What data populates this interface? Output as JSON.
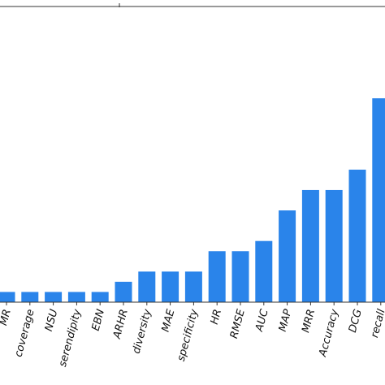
{
  "chart_data": {
    "type": "bar",
    "categories": [
      "MR",
      "coverage",
      "NSU",
      "serendipity",
      "EBN",
      "ARHR",
      "diversity",
      "MAE",
      "specificity",
      "HR",
      "RMSE",
      "AUC",
      "MAP",
      "MRR",
      "Accuracy",
      "DCG",
      "recall"
    ],
    "values": [
      1,
      1,
      1,
      1,
      1,
      2,
      3,
      3,
      3,
      5,
      5,
      6,
      9,
      11,
      11,
      13,
      20
    ],
    "ylim": [
      0,
      29
    ],
    "grid": false,
    "legend": "none",
    "bar_color": "#2a84ea",
    "axis_color": "#333333"
  }
}
